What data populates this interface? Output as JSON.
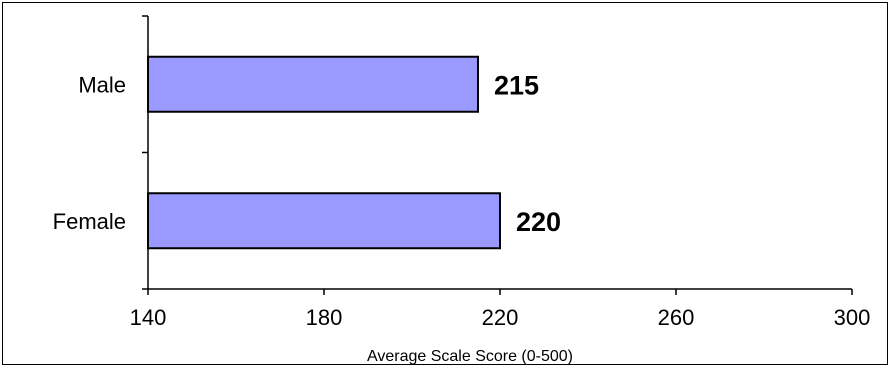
{
  "chart_data": {
    "type": "bar",
    "orientation": "horizontal",
    "categories": [
      "Male",
      "Female"
    ],
    "values": [
      215,
      220
    ],
    "data_labels": [
      "215",
      "220"
    ],
    "xlabel": "Average Scale Score (0-500)",
    "ylabel": "",
    "xlim": [
      140,
      300
    ],
    "x_ticks": [
      140,
      180,
      220,
      260,
      300
    ],
    "x_tick_labels": [
      "140",
      "180",
      "220",
      "260",
      "300"
    ],
    "grid": false,
    "legend": "none",
    "bar_color": "#9999ff",
    "bar_edge_color": "#000000"
  }
}
